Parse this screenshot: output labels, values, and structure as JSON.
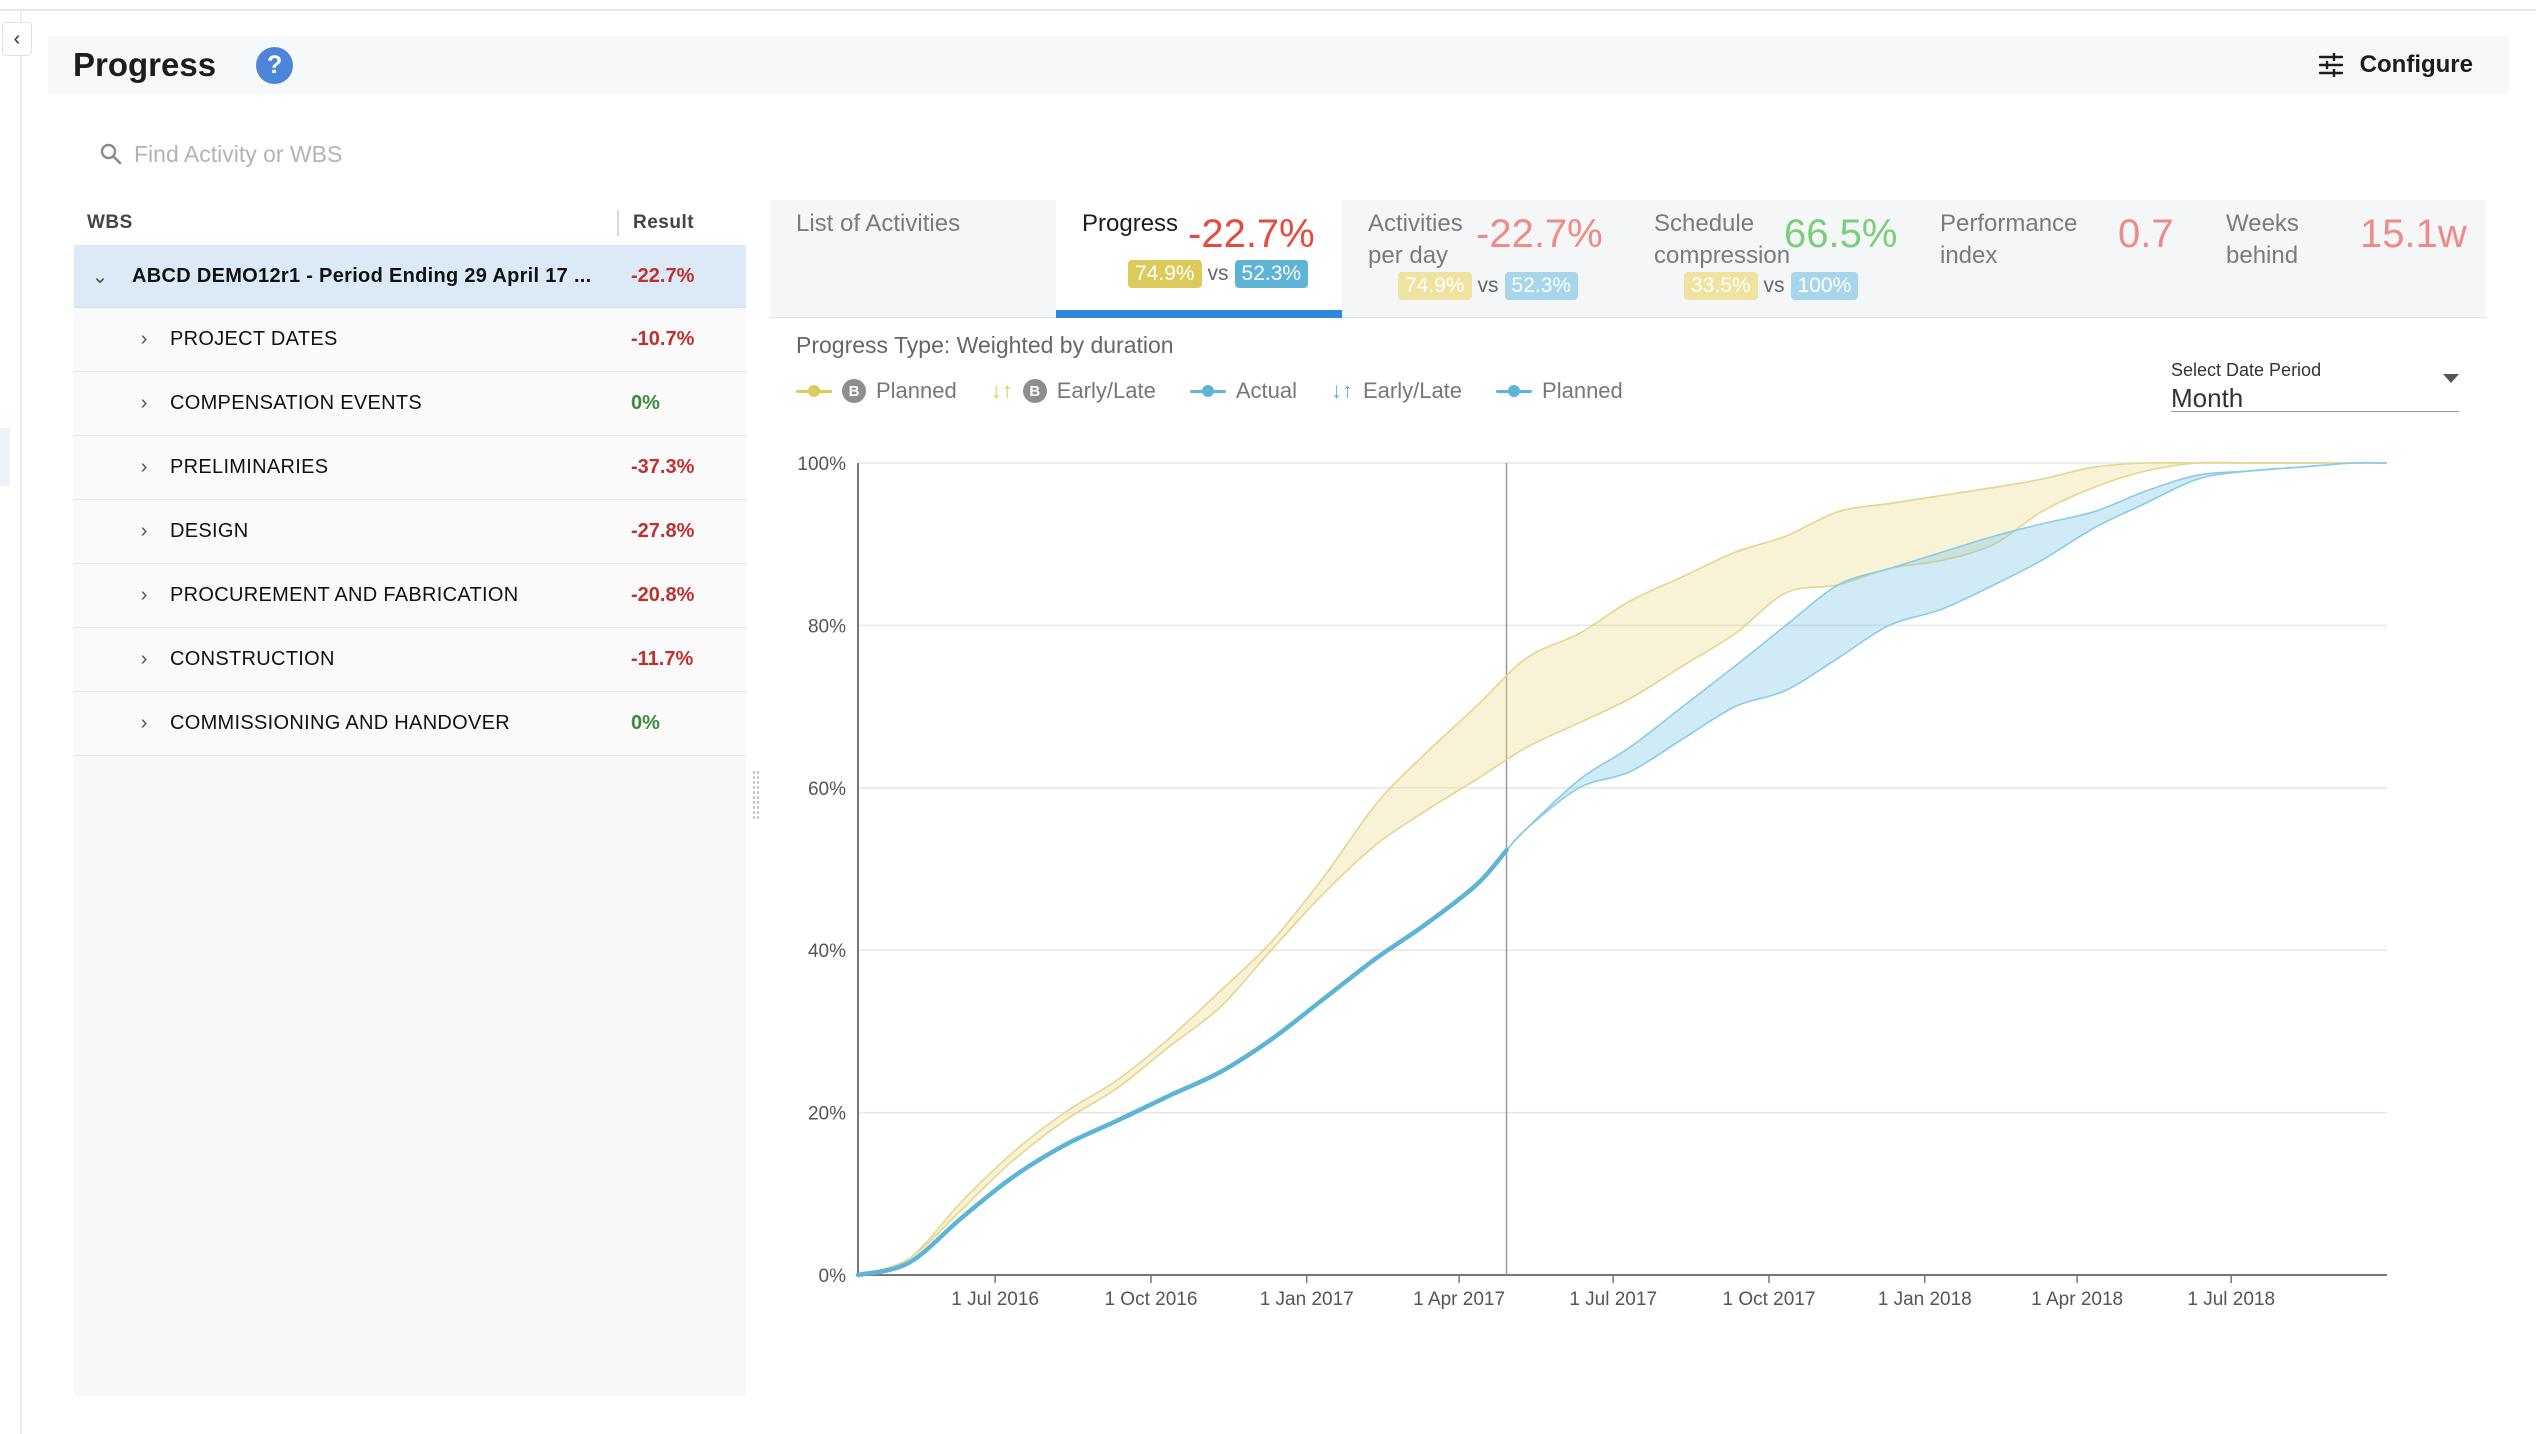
{
  "header": {
    "title": "Progress",
    "help_icon": "help-icon",
    "configure_label": "Configure"
  },
  "search": {
    "placeholder": "Find Activity or WBS"
  },
  "wbs": {
    "col_wbs": "WBS",
    "col_result": "Result",
    "rows": [
      {
        "label": "ABCD DEMO12r1 - Period Ending 29 April 17 ...",
        "value": "-22.7%",
        "expanded": true
      },
      {
        "label": "PROJECT DATES",
        "value": "-10.7%"
      },
      {
        "label": "COMPENSATION EVENTS",
        "value": "0%"
      },
      {
        "label": "PRELIMINARIES",
        "value": "-37.3%"
      },
      {
        "label": "DESIGN",
        "value": "-27.8%"
      },
      {
        "label": "PROCUREMENT AND FABRICATION",
        "value": "-20.8%"
      },
      {
        "label": "CONSTRUCTION",
        "value": "-11.7%"
      },
      {
        "label": "COMMISSIONING AND HANDOVER",
        "value": "0%"
      }
    ]
  },
  "tabs": {
    "list": {
      "name": "List of Activities"
    },
    "progress": {
      "name": "Progress",
      "value": "-22.7%",
      "a": "74.9%",
      "vs": "vs",
      "b": "52.3%"
    },
    "per_day": {
      "name1": "Activities",
      "name2": "per day",
      "value": "-22.7%",
      "a": "74.9%",
      "vs": "vs",
      "b": "52.3%"
    },
    "compression": {
      "name1": "Schedule",
      "name2": "compression",
      "value": "66.5%",
      "a": "33.5%",
      "vs": "vs",
      "b": "100%"
    },
    "performance": {
      "name1": "Performance",
      "name2": "index",
      "value": "0.7"
    },
    "weeks": {
      "name1": "Weeks",
      "name2": "behind",
      "value": "15.1w"
    }
  },
  "colors": {
    "red": "#e8493f",
    "salmon": "#ef8b84",
    "green": "#79cf79",
    "yellow": "#dccb5a",
    "blue": "#5db4d6",
    "accent": "#2f86e0"
  },
  "progress_type": "Progress Type: Weighted by duration",
  "legend": {
    "baseline_badge": "B",
    "items": [
      "Planned",
      "Early/Late",
      "Actual",
      "Early/Late",
      "Planned"
    ]
  },
  "date_period": {
    "label": "Select Date Period",
    "value": "Month"
  },
  "chart_data": {
    "type": "area",
    "x_ticks": [
      "1 Jul 2016",
      "1 Oct 2016",
      "1 Jan 2017",
      "1 Apr 2017",
      "1 Jul 2017",
      "1 Oct 2017",
      "1 Jan 2018",
      "1 Apr 2018",
      "1 Jul 2018"
    ],
    "y_ticks": [
      "0%",
      "20%",
      "40%",
      "60%",
      "80%",
      "100%"
    ],
    "ylim": [
      0,
      100
    ],
    "xlim": [
      "2016-04-11",
      "2018-10-01"
    ],
    "data_date": "2017-04-29",
    "series": [
      {
        "name": "Planned",
        "x": [
          "2016-04-11",
          "2016-05-11",
          "2016-06-11",
          "2016-07-11",
          "2016-08-11",
          "2016-09-11",
          "2016-10-11",
          "2016-11-11",
          "2016-12-11",
          "2017-01-11",
          "2017-02-11",
          "2017-03-11",
          "2017-04-11",
          "2017-05-11",
          "2017-06-11",
          "2017-07-11",
          "2017-08-11",
          "2017-09-11",
          "2017-10-11",
          "2017-11-11",
          "2017-12-11",
          "2018-01-11",
          "2018-02-11",
          "2018-03-11",
          "2018-04-11",
          "2018-05-11",
          "2018-06-11",
          "2018-07-11",
          "2018-08-11",
          "2018-09-11",
          "2018-10-01"
        ],
        "early": [
          0,
          2,
          9,
          15,
          20,
          24,
          29,
          35,
          41,
          49,
          58,
          64,
          70,
          76,
          79,
          83,
          86,
          89,
          91,
          94,
          95,
          96,
          97,
          98,
          99.5,
          100,
          100,
          100,
          100,
          100,
          100
        ],
        "late": [
          0,
          2,
          8,
          14,
          19,
          23,
          28,
          33,
          40,
          47,
          53,
          57,
          61,
          65,
          68,
          71,
          75,
          79,
          84,
          85,
          87,
          88,
          90,
          94,
          97,
          99,
          100,
          100,
          100,
          100,
          100
        ]
      },
      {
        "name": "Actual",
        "x": [
          "2016-04-11",
          "2016-05-11",
          "2016-06-11",
          "2016-07-11",
          "2016-08-11",
          "2016-09-11",
          "2016-10-11",
          "2016-11-11",
          "2016-12-11",
          "2017-01-11",
          "2017-02-11",
          "2017-03-11",
          "2017-04-11",
          "2017-04-29"
        ],
        "values": [
          0,
          1.5,
          7,
          12,
          16,
          19,
          22,
          25,
          29,
          34,
          39,
          43,
          48,
          52.3
        ]
      },
      {
        "name": "Planned",
        "x": [
          "2017-04-29",
          "2017-05-11",
          "2017-06-11",
          "2017-07-11",
          "2017-08-11",
          "2017-09-11",
          "2017-10-11",
          "2017-11-11",
          "2017-12-11",
          "2018-01-11",
          "2018-02-11",
          "2018-03-11",
          "2018-04-11",
          "2018-05-11",
          "2018-06-11",
          "2018-07-11",
          "2018-08-11",
          "2018-09-11",
          "2018-10-01"
        ],
        "early": [
          52.3,
          55,
          61,
          65,
          70,
          75,
          80,
          85,
          87,
          89,
          91,
          92.5,
          94,
          96.5,
          98.5,
          99,
          99.5,
          100,
          100
        ],
        "late": [
          52.3,
          55,
          60,
          62,
          66,
          70,
          72,
          76,
          80,
          82,
          85,
          88,
          92,
          95,
          98,
          99,
          99.5,
          100,
          100
        ]
      }
    ]
  }
}
